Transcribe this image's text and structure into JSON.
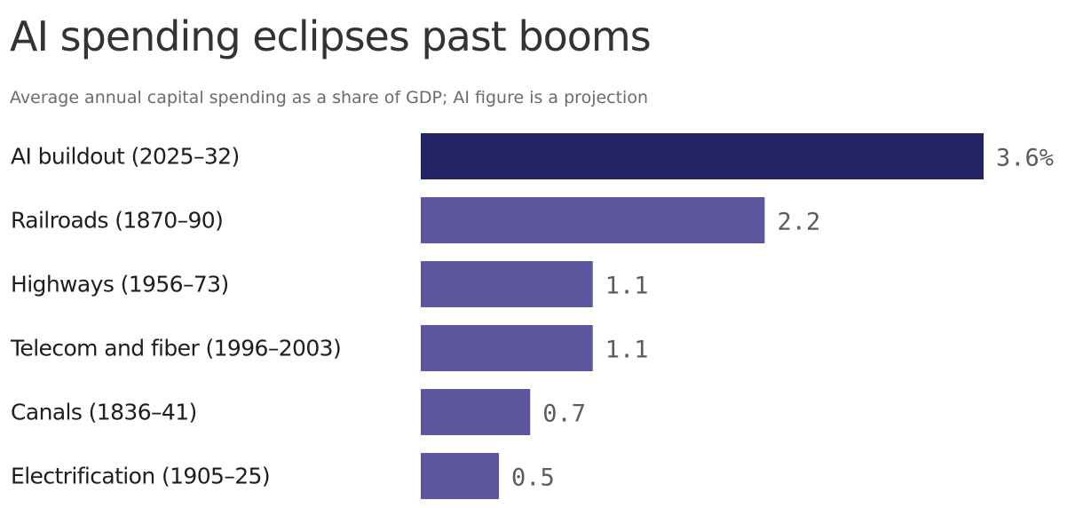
{
  "chart_data": {
    "type": "bar",
    "orientation": "horizontal",
    "title": "AI spending eclipses past booms",
    "subtitle": "Average annual capital spending as a share of GDP; AI figure is a projection",
    "categories": [
      "AI buildout (2025–32)",
      "Railroads (1870–90)",
      "Highways (1956–73)",
      "Telecom and fiber (1996–2003)",
      "Canals (1836–41)",
      "Electrification (1905–25)"
    ],
    "values": [
      3.6,
      2.2,
      1.1,
      1.1,
      0.7,
      0.5
    ],
    "value_labels": [
      "3.6%",
      "2.2",
      "1.1",
      "1.1",
      "0.7",
      "0.5"
    ],
    "xlim": [
      0,
      3.6
    ],
    "colors": {
      "highlight": "#222463",
      "default": "#5b569e"
    },
    "highlight_index": 0,
    "grid": false,
    "legend": "none"
  }
}
